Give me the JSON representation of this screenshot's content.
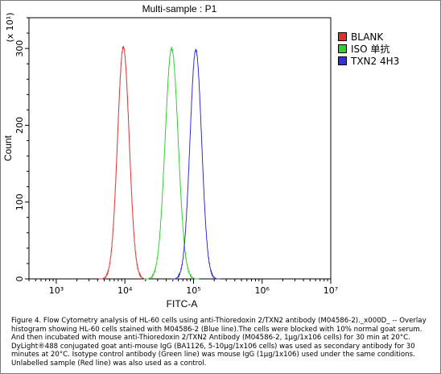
{
  "chart_data": {
    "type": "histogram-overlay",
    "title": "Multi-sample : P1",
    "xlabel": "FITC-A",
    "ylabel": "Count",
    "y_multiplier_label": "(x 10¹)",
    "x_scale": "log",
    "xlim": [
      400,
      10000000
    ],
    "ylim": [
      0,
      340
    ],
    "x_ticks": [
      {
        "value": 1000,
        "label": "10³"
      },
      {
        "value": 10000,
        "label": "10⁴"
      },
      {
        "value": 100000,
        "label": "10⁵"
      },
      {
        "value": 1000000,
        "label": "10⁶"
      },
      {
        "value": 10000000,
        "label": "10⁷"
      }
    ],
    "y_ticks": [
      0,
      100,
      200,
      300
    ],
    "legend_position": "right",
    "series": [
      {
        "name": "BLANK",
        "color": "#e03030",
        "peak_x": 9500,
        "peak_y": 302,
        "log_sigma": 0.085
      },
      {
        "name": "ISO 单抗",
        "color": "#30d030",
        "peak_x": 48000,
        "peak_y": 300,
        "log_sigma": 0.095
      },
      {
        "name": "TXN2 4H3",
        "color": "#3030d8",
        "peak_x": 108000,
        "peak_y": 298,
        "log_sigma": 0.085
      }
    ]
  },
  "caption": "Figure 4. Flow Cytometry analysis of HL-60 cells using anti-Thioredoxin 2/TXN2 antibody (M04586-2)._x000D_ -- Overlay histogram showing HL-60 cells stained with M04586-2 (Blue line).The cells were blocked with 10% normal goat serum. And then incubated with mouse anti-Thioredoxin 2/TXN2 Antibody (M04586-2, 1μg/1x106 cells) for 30 min at 20°C. DyLight®488 conjugated goat anti-mouse IgG (BA1126, 5-10μg/1x106 cells) was used as secondary antibody for 30 minutes at 20°C. Isotype control antibody (Green line) was mouse IgG (1μg/1x106) used under the same conditions. Unlabelled sample (Red line) was also used as a control."
}
